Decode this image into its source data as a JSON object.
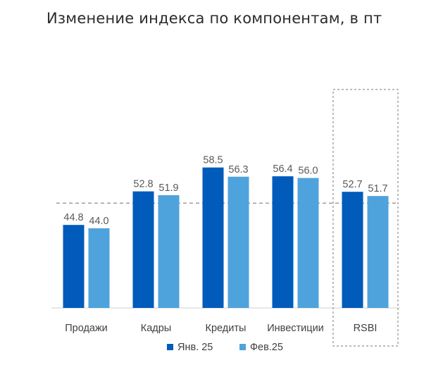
{
  "title": "Изменение индекса по компонентам, в пт",
  "chart_data": {
    "type": "bar",
    "title": "Изменение индекса по компонентам, в пт",
    "xlabel": "",
    "ylabel": "",
    "categories": [
      "Продажи",
      "Кадры",
      "Кредиты",
      "Инвестиции",
      "RSBI"
    ],
    "series": [
      {
        "name": "Янв. 25",
        "values": [
          44.8,
          52.8,
          58.5,
          56.4,
          52.7
        ],
        "color": "#005BBB"
      },
      {
        "name": "Фев.25",
        "values": [
          44.0,
          51.9,
          56.3,
          56.0,
          51.7
        ],
        "color": "#4FA3DC"
      }
    ],
    "ylim": [
      25,
      65
    ],
    "reference_line": 50,
    "grid": false,
    "legend": "bottom",
    "highlighted_category": "RSBI"
  }
}
